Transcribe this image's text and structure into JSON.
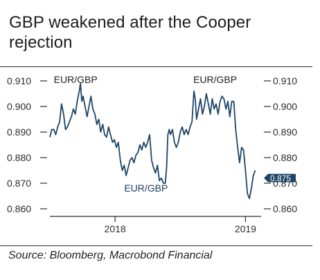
{
  "header": {
    "title": "GBP weakened after the Cooper rejection"
  },
  "footer": {
    "source": "Source: Bloomberg, Macrobond Financial"
  },
  "colors": {
    "line": "#1d4466",
    "badge": "#1d4466",
    "axis": "#2a2a2a"
  },
  "chart_data": {
    "type": "line",
    "title": "GBP weakened after the Cooper rejection",
    "yticks": [
      "0.910",
      "0.900",
      "0.890",
      "0.880",
      "0.870",
      "0.860"
    ],
    "ylim": [
      0.858,
      0.912
    ],
    "xlim": [
      2017.5,
      2019.12
    ],
    "xticks": [
      {
        "label": "2018",
        "x": 2018.0
      },
      {
        "label": "2019",
        "x": 2019.0
      }
    ],
    "grid": false,
    "annotations": [
      {
        "text": "EUR/GBP",
        "x": 2017.53,
        "y": 0.9092
      },
      {
        "text": "EUR/GBP",
        "x": 2018.07,
        "y": 0.8668
      },
      {
        "text": "EUR/GBP",
        "x": 2018.6,
        "y": 0.9092
      }
    ],
    "last_value_label": "0.875",
    "series": [
      {
        "values": [
          [
            2017.5,
            0.888
          ],
          [
            2017.515,
            0.891
          ],
          [
            2017.53,
            0.891
          ],
          [
            2017.545,
            0.889
          ],
          [
            2017.56,
            0.892
          ],
          [
            2017.575,
            0.894
          ],
          [
            2017.59,
            0.901
          ],
          [
            2017.605,
            0.897
          ],
          [
            2017.62,
            0.891
          ],
          [
            2017.635,
            0.892
          ],
          [
            2017.65,
            0.894
          ],
          [
            2017.665,
            0.896
          ],
          [
            2017.68,
            0.899
          ],
          [
            2017.695,
            0.897
          ],
          [
            2017.71,
            0.902
          ],
          [
            2017.725,
            0.906
          ],
          [
            2017.735,
            0.909
          ],
          [
            2017.745,
            0.902
          ],
          [
            2017.755,
            0.904
          ],
          [
            2017.77,
            0.9
          ],
          [
            2017.785,
            0.896
          ],
          [
            2017.8,
            0.9
          ],
          [
            2017.815,
            0.904
          ],
          [
            2017.83,
            0.899
          ],
          [
            2017.845,
            0.897
          ],
          [
            2017.86,
            0.893
          ],
          [
            2017.875,
            0.895
          ],
          [
            2017.89,
            0.89
          ],
          [
            2017.905,
            0.893
          ],
          [
            2017.92,
            0.889
          ],
          [
            2017.935,
            0.888
          ],
          [
            2017.95,
            0.892
          ],
          [
            2017.965,
            0.889
          ],
          [
            2017.98,
            0.886
          ],
          [
            2017.995,
            0.887
          ],
          [
            2018.01,
            0.884
          ],
          [
            2018.025,
            0.886
          ],
          [
            2018.04,
            0.879
          ],
          [
            2018.055,
            0.875
          ],
          [
            2018.07,
            0.877
          ],
          [
            2018.085,
            0.873
          ],
          [
            2018.1,
            0.876
          ],
          [
            2018.115,
            0.879
          ],
          [
            2018.13,
            0.88
          ],
          [
            2018.145,
            0.878
          ],
          [
            2018.16,
            0.881
          ],
          [
            2018.175,
            0.882
          ],
          [
            2018.19,
            0.885
          ],
          [
            2018.205,
            0.883
          ],
          [
            2018.22,
            0.886
          ],
          [
            2018.235,
            0.884
          ],
          [
            2018.25,
            0.886
          ],
          [
            2018.265,
            0.889
          ],
          [
            2018.28,
            0.879
          ],
          [
            2018.295,
            0.876
          ],
          [
            2018.31,
            0.874
          ],
          [
            2018.325,
            0.877
          ],
          [
            2018.34,
            0.871
          ],
          [
            2018.355,
            0.872
          ],
          [
            2018.37,
            0.87
          ],
          [
            2018.385,
            0.87
          ],
          [
            2018.395,
            0.876
          ],
          [
            2018.405,
            0.889
          ],
          [
            2018.415,
            0.891
          ],
          [
            2018.425,
            0.889
          ],
          [
            2018.44,
            0.891
          ],
          [
            2018.455,
            0.886
          ],
          [
            2018.47,
            0.884
          ],
          [
            2018.485,
            0.886
          ],
          [
            2018.5,
            0.89
          ],
          [
            2018.515,
            0.892
          ],
          [
            2018.53,
            0.889
          ],
          [
            2018.545,
            0.891
          ],
          [
            2018.56,
            0.889
          ],
          [
            2018.575,
            0.892
          ],
          [
            2018.59,
            0.894
          ],
          [
            2018.605,
            0.906
          ],
          [
            2018.615,
            0.903
          ],
          [
            2018.625,
            0.895
          ],
          [
            2018.64,
            0.899
          ],
          [
            2018.655,
            0.903
          ],
          [
            2018.67,
            0.897
          ],
          [
            2018.685,
            0.9
          ],
          [
            2018.7,
            0.905
          ],
          [
            2018.715,
            0.901
          ],
          [
            2018.73,
            0.897
          ],
          [
            2018.745,
            0.903
          ],
          [
            2018.76,
            0.899
          ],
          [
            2018.775,
            0.901
          ],
          [
            2018.79,
            0.897
          ],
          [
            2018.805,
            0.902
          ],
          [
            2018.82,
            0.904
          ],
          [
            2018.835,
            0.903
          ],
          [
            2018.85,
            0.899
          ],
          [
            2018.865,
            0.902
          ],
          [
            2018.88,
            0.896
          ],
          [
            2018.895,
            0.902
          ],
          [
            2018.91,
            0.902
          ],
          [
            2018.925,
            0.891
          ],
          [
            2018.94,
            0.884
          ],
          [
            2018.955,
            0.878
          ],
          [
            2018.97,
            0.884
          ],
          [
            2018.985,
            0.883
          ],
          [
            2019.0,
            0.875
          ],
          [
            2019.015,
            0.866
          ],
          [
            2019.03,
            0.864
          ],
          [
            2019.045,
            0.868
          ],
          [
            2019.06,
            0.873
          ],
          [
            2019.075,
            0.875
          ]
        ]
      }
    ]
  }
}
